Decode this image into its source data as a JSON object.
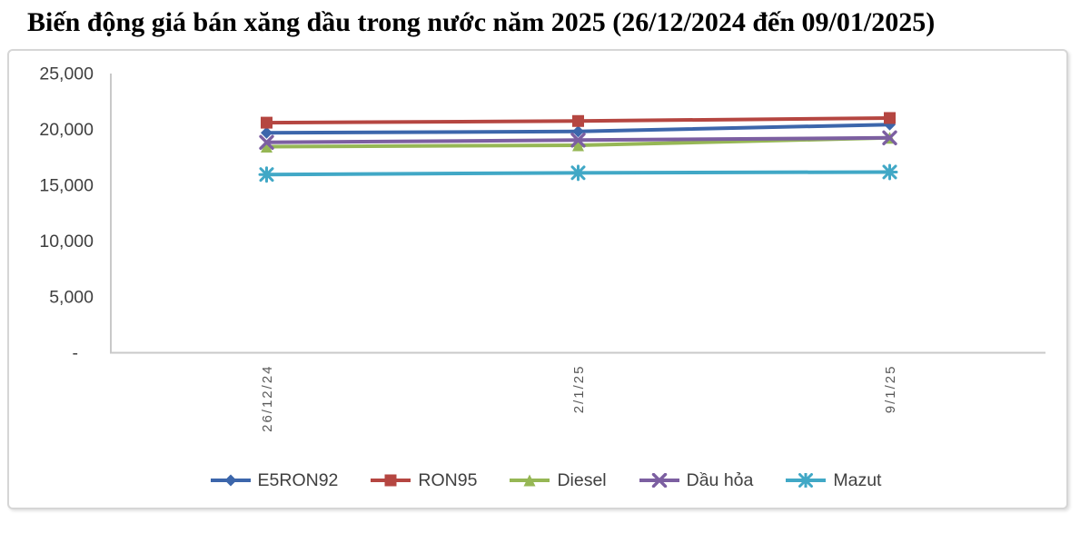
{
  "chart_data": {
    "type": "line",
    "title": "Biến động giá bán xăng dầu trong nước năm 2025 (26/12/2024 đến 09/01/2025)",
    "categories": [
      "26/12/24",
      "2/1/25",
      "9/1/25"
    ],
    "series": [
      {
        "name": "E5RON92",
        "marker": "diamond",
        "color": "#3C66AB",
        "values": [
          19692,
          19817,
          20431
        ]
      },
      {
        "name": "RON95",
        "marker": "square",
        "color": "#B54641",
        "values": [
          20602,
          20750,
          21019
        ]
      },
      {
        "name": "Diesel",
        "marker": "triangle",
        "color": "#96B755",
        "values": [
          18457,
          18582,
          19243
        ]
      },
      {
        "name": "Dầu hỏa",
        "marker": "x",
        "color": "#7C5FA1",
        "values": [
          18837,
          19040,
          19244
        ]
      },
      {
        "name": "Mazut",
        "marker": "asterisk",
        "color": "#41A8C6",
        "values": [
          15960,
          16112,
          16182
        ]
      }
    ],
    "y_ticks": [
      {
        "value": 25000,
        "label": "25,000"
      },
      {
        "value": 20000,
        "label": "20,000"
      },
      {
        "value": 15000,
        "label": "15,000"
      },
      {
        "value": 10000,
        "label": "10,000"
      },
      {
        "value": 5000,
        "label": "5,000"
      },
      {
        "value": 0,
        "label": "-"
      }
    ],
    "ylim": [
      0,
      25000
    ],
    "xlabel": "",
    "ylabel": "",
    "grid": false,
    "legend_position": "bottom",
    "x_tick_rotation": -90
  },
  "colors": {
    "axis_line": "#C9C9C9",
    "y_tick_text": "#3F3F3F",
    "x_tick_text": "#595959",
    "legend_text": "#404040",
    "card_border": "#D6D6D6"
  }
}
